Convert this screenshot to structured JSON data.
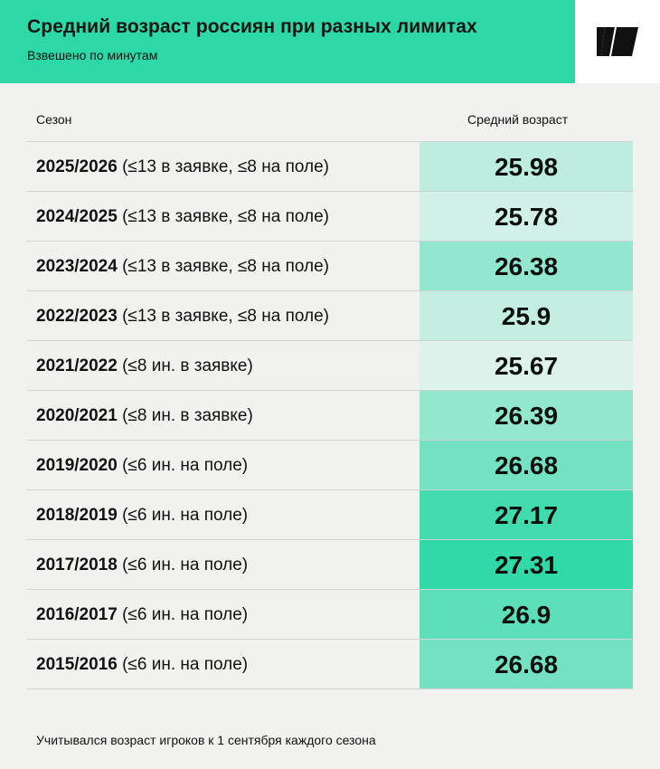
{
  "header": {
    "title": "Средний возраст россиян при разных лимитах",
    "subtitle": "Взвешено по минутам",
    "logo": "sports-logo-icon"
  },
  "columns": {
    "season": "Сезон",
    "age": "Средний возраст"
  },
  "footnote": "Учитывался возраст игроков к 1 сентября каждого сезона",
  "chart_data": {
    "type": "table",
    "title": "Средний возраст россиян при разных лимитах",
    "subtitle": "Взвешено по минутам",
    "columns": [
      "Сезон",
      "Средний возраст"
    ],
    "rows": [
      {
        "season": "2025/2026",
        "limit": "(≤13 в заявке, ≤8 на поле)",
        "value": "25.98"
      },
      {
        "season": "2024/2025",
        "limit": "(≤13 в заявке, ≤8 на поле)",
        "value": "25.78"
      },
      {
        "season": "2023/2024",
        "limit": "(≤13 в заявке, ≤8 на поле)",
        "value": "26.38"
      },
      {
        "season": "2022/2023",
        "limit": "(≤13 в заявке, ≤8 на поле)",
        "value": "25.9"
      },
      {
        "season": "2021/2022",
        "limit": "(≤8 ин. в заявке)",
        "value": "25.67"
      },
      {
        "season": "2020/2021",
        "limit": "(≤8 ин. в заявке)",
        "value": "26.39"
      },
      {
        "season": "2019/2020",
        "limit": "(≤6 ин. на поле)",
        "value": "26.68"
      },
      {
        "season": "2018/2019",
        "limit": "(≤6 ин. на поле)",
        "value": "27.17"
      },
      {
        "season": "2017/2018",
        "limit": "(≤6 ин. на поле)",
        "value": "27.31"
      },
      {
        "season": "2016/2017",
        "limit": "(≤6 ин. на поле)",
        "value": "26.9"
      },
      {
        "season": "2015/2016",
        "limit": "(≤6 ин. на поле)",
        "value": "26.68"
      }
    ],
    "color_scale": {
      "min": 25.6,
      "max": 27.35,
      "low_color": "#e4f3ee",
      "high_color": "#2ed8a6"
    }
  }
}
